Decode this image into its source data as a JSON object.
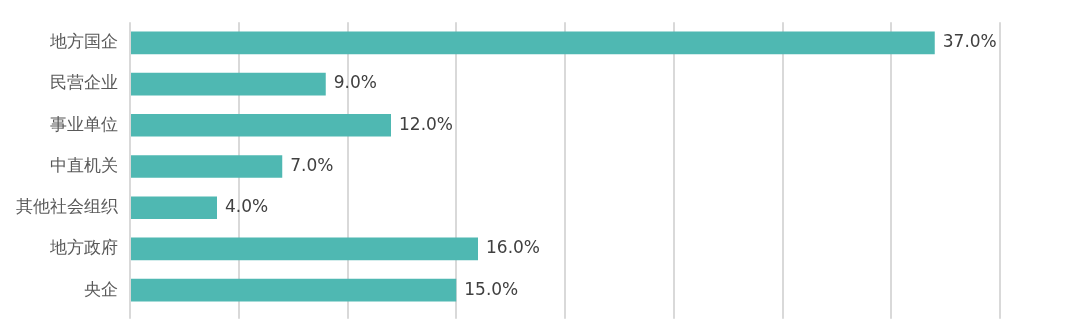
{
  "chart_data": {
    "type": "bar",
    "orientation": "horizontal",
    "categories": [
      "地方国企",
      "民营企业",
      "事业单位",
      "中直机关",
      "其他社会组织",
      "地方政府",
      "央企"
    ],
    "values": [
      37,
      9,
      12,
      7,
      4,
      16,
      15
    ],
    "value_labels": [
      "37.0%",
      "9.0%",
      "12.0%",
      "7.0%",
      "4.0%",
      "16.0%",
      "15.0%"
    ],
    "color": "#4fb8b2",
    "xlim": [
      0,
      40
    ],
    "xticks": [
      {
        "value": 0,
        "label": null
      },
      {
        "value": 5,
        "label": null
      },
      {
        "value": 10,
        "label": null
      },
      {
        "value": 15,
        "label": null
      },
      {
        "value": 20,
        "label": null
      },
      {
        "value": 25,
        "label": null
      },
      {
        "value": 30,
        "label": null
      },
      {
        "value": 35,
        "label": null
      },
      {
        "value": 40,
        "label": null
      }
    ],
    "tick_labels": "y",
    "grid": "x",
    "legend": false
  }
}
